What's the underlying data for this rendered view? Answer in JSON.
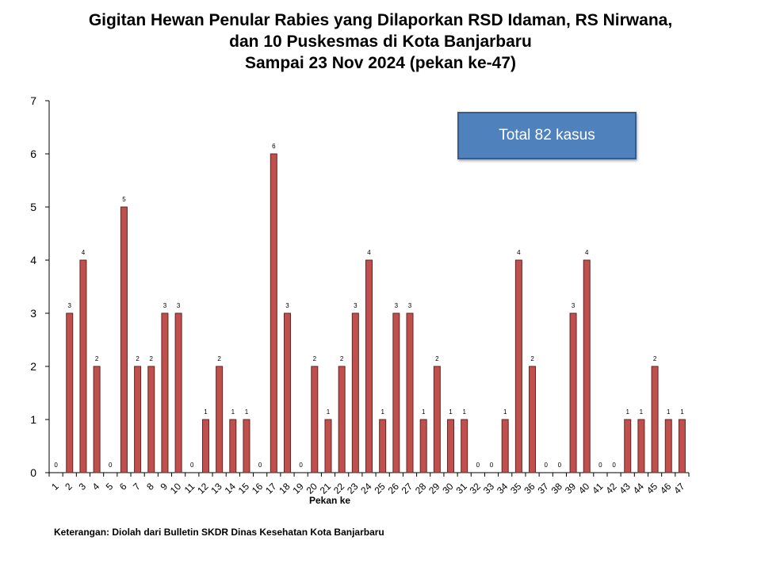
{
  "chart_data": {
    "type": "bar",
    "title_lines": [
      "Gigitan Hewan Penular Rabies yang Dilaporkan RSD Idaman, RS Nirwana,",
      "dan 10 Puskesmas di Kota Banjarbaru",
      "Sampai 23 Nov 2024 (pekan ke-47)"
    ],
    "xlabel": "Pekan ke",
    "ylabel": "",
    "ylim": [
      0,
      7
    ],
    "yticks": [
      0,
      1,
      2,
      3,
      4,
      5,
      6,
      7
    ],
    "categories": [
      "1",
      "2",
      "3",
      "4",
      "5",
      "6",
      "7",
      "8",
      "9",
      "10",
      "11",
      "12",
      "13",
      "14",
      "15",
      "16",
      "17",
      "18",
      "19",
      "20",
      "21",
      "22",
      "23",
      "24",
      "25",
      "26",
      "27",
      "28",
      "29",
      "30",
      "31",
      "32",
      "33",
      "34",
      "35",
      "36",
      "37",
      "38",
      "39",
      "40",
      "41",
      "42",
      "43",
      "44",
      "45",
      "46",
      "47"
    ],
    "values": [
      0,
      3,
      4,
      2,
      0,
      5,
      2,
      2,
      3,
      3,
      0,
      1,
      2,
      1,
      1,
      0,
      6,
      3,
      0,
      2,
      1,
      2,
      3,
      4,
      1,
      3,
      3,
      1,
      2,
      1,
      1,
      0,
      0,
      1,
      4,
      2,
      0,
      0,
      3,
      4,
      0,
      0,
      1,
      1,
      2,
      1,
      1
    ],
    "bar_color": "#c0504d",
    "bar_border": "#632523",
    "grid": false,
    "legend": "none",
    "data_labels": true
  },
  "annotation": {
    "total_text": "Total 82 kasus",
    "color": "#4f81bd"
  },
  "note": "Keterangan: Diolah dari Bulletin SKDR Dinas Kesehatan Kota Banjarbaru"
}
